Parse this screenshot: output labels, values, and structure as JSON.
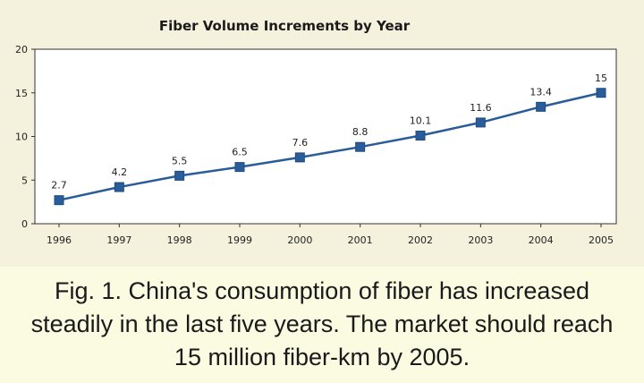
{
  "chart_data": {
    "type": "line",
    "title": "Fiber Volume Increments by Year",
    "xlabel": "",
    "ylabel": "",
    "categories": [
      "1996",
      "1997",
      "1998",
      "1999",
      "2000",
      "2001",
      "2002",
      "2003",
      "2004",
      "2005"
    ],
    "series": [
      {
        "values": [
          2.7,
          4.2,
          5.5,
          6.5,
          7.6,
          8.8,
          10.1,
          11.6,
          13.4,
          15
        ],
        "data_labels": [
          "2.7",
          "4.2",
          "5.5",
          "6.5",
          "7.6",
          "8.8",
          "10.1",
          "11.6",
          "13.4",
          "15"
        ],
        "color": "#2a5c9a"
      }
    ],
    "ylim": [
      0,
      20
    ],
    "yticks": [
      "0",
      "5",
      "10",
      "15",
      "20"
    ],
    "grid": false,
    "legend": "none"
  },
  "caption": {
    "line1": "Fig. 1. China's consumption of fiber has increased",
    "line2": "steadily in the last five years. The market should reach",
    "line3": "15 million fiber-km by 2005."
  },
  "colors": {
    "chart_background": "#f4f1dd",
    "plot_background": "#ffffff",
    "caption_background": "#fbfbe2",
    "series": "#2a5c9a"
  }
}
